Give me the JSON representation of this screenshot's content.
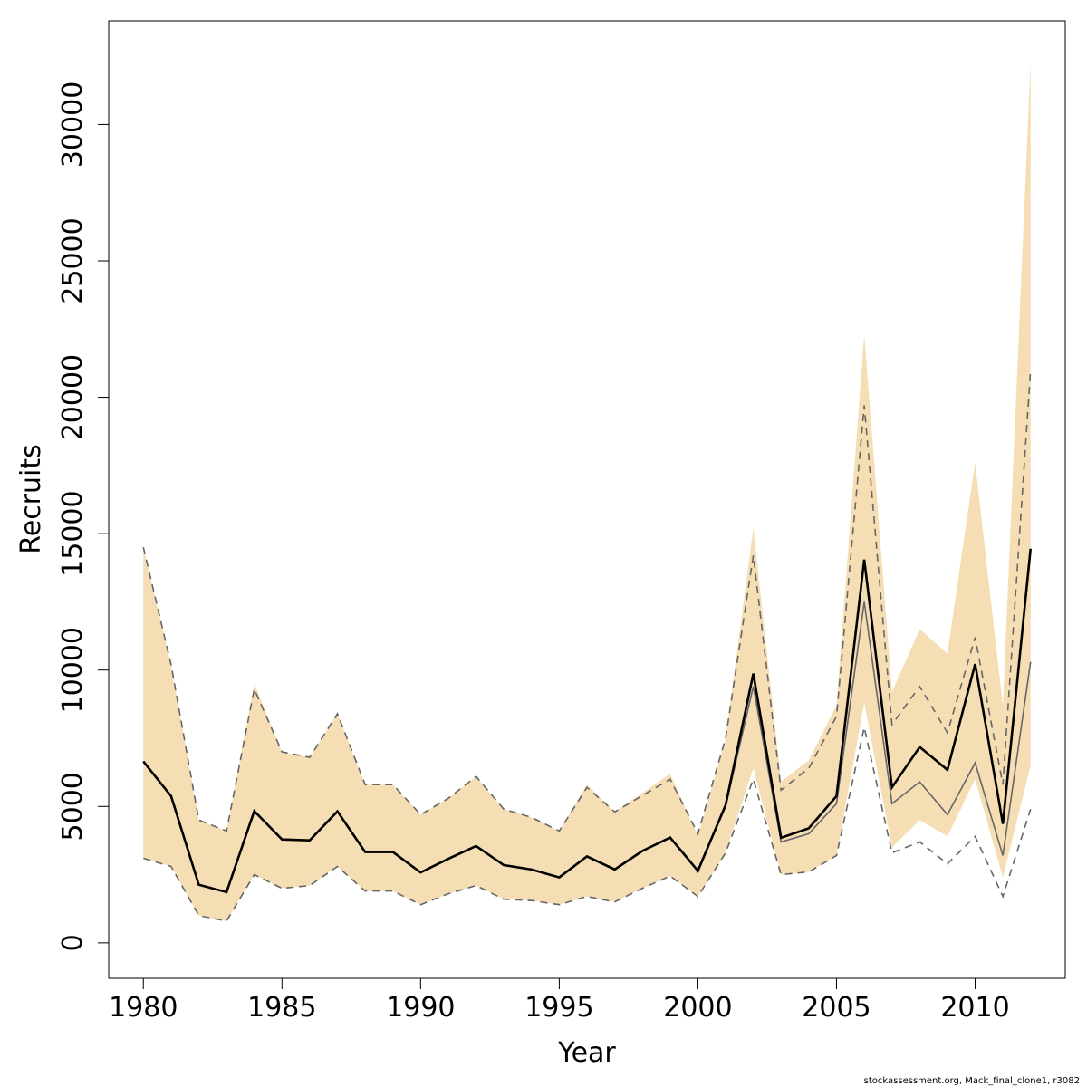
{
  "chart_data": {
    "type": "line",
    "xlabel": "Year",
    "ylabel": "Recruits",
    "xlim": [
      1978.75,
      2013.25
    ],
    "ylim": [
      -1300,
      33800
    ],
    "x_ticks": [
      1980,
      1985,
      1990,
      1995,
      2000,
      2005,
      2010
    ],
    "y_ticks": [
      0,
      5000,
      10000,
      15000,
      20000,
      25000,
      30000
    ],
    "x": [
      1980,
      1981,
      1982,
      1983,
      1984,
      1985,
      1986,
      1987,
      1988,
      1989,
      1990,
      1991,
      1992,
      1993,
      1994,
      1995,
      1996,
      1997,
      1998,
      1999,
      2000,
      2001,
      2002,
      2003,
      2004,
      2005,
      2006,
      2007,
      2008,
      2009,
      2010,
      2011,
      2012
    ],
    "series": [
      {
        "role": "band",
        "color": "#f5deb3",
        "lower": [
          3100,
          2800,
          1000,
          800,
          2500,
          2000,
          2100,
          2800,
          1900,
          1900,
          1400,
          1800,
          2100,
          1600,
          1550,
          1400,
          1700,
          1500,
          2000,
          2450,
          1700,
          3300,
          6400,
          2500,
          2600,
          3200,
          8800,
          3500,
          4500,
          3900,
          6000,
          2400,
          6500
        ],
        "upper": [
          14500,
          10200,
          4500,
          4100,
          9500,
          7000,
          6800,
          8400,
          5800,
          5800,
          4700,
          5300,
          6100,
          4900,
          4600,
          4100,
          5800,
          4800,
          5500,
          6200,
          3900,
          7500,
          15200,
          5900,
          6700,
          8700,
          22300,
          9200,
          11500,
          10600,
          17600,
          8700,
          32300
        ]
      },
      {
        "role": "median",
        "color": "#000000",
        "values": [
          6650,
          5380,
          2130,
          1860,
          4830,
          3790,
          3760,
          4820,
          3330,
          3330,
          2580,
          3080,
          3550,
          2850,
          2690,
          2400,
          3170,
          2690,
          3370,
          3860,
          2640,
          5050,
          9870,
          3850,
          4200,
          5380,
          14050,
          5700,
          7180,
          6340,
          10220,
          4360,
          14450
        ]
      },
      {
        "role": "alternate",
        "color": "#666666",
        "values": [
          6650,
          5380,
          2130,
          1860,
          4830,
          3790,
          3760,
          4820,
          3330,
          3330,
          2580,
          3080,
          3550,
          2850,
          2690,
          2400,
          3170,
          2690,
          3370,
          3860,
          2640,
          5000,
          9400,
          3700,
          4000,
          5100,
          12500,
          5100,
          5900,
          4700,
          6600,
          3200,
          10300
        ]
      },
      {
        "role": "interval-upper",
        "color": "#666666",
        "values": [
          14500,
          10200,
          4500,
          4100,
          9300,
          7000,
          6800,
          8400,
          5800,
          5800,
          4700,
          5300,
          6100,
          4900,
          4600,
          4100,
          5700,
          4800,
          5400,
          6000,
          4000,
          7500,
          14200,
          5600,
          6400,
          8300,
          19700,
          8000,
          9400,
          7700,
          11200,
          5800,
          21000
        ]
      },
      {
        "role": "interval-lower",
        "color": "#666666",
        "values": [
          3100,
          2800,
          1000,
          800,
          2500,
          2000,
          2100,
          2800,
          1900,
          1900,
          1400,
          1800,
          2100,
          1600,
          1550,
          1400,
          1700,
          1500,
          2000,
          2450,
          1700,
          3300,
          6000,
          2500,
          2600,
          3200,
          7900,
          3300,
          3700,
          2900,
          3900,
          1700,
          4900
        ]
      }
    ]
  },
  "footer": "stockassessment.org, Mack_final_clone1, r3082"
}
